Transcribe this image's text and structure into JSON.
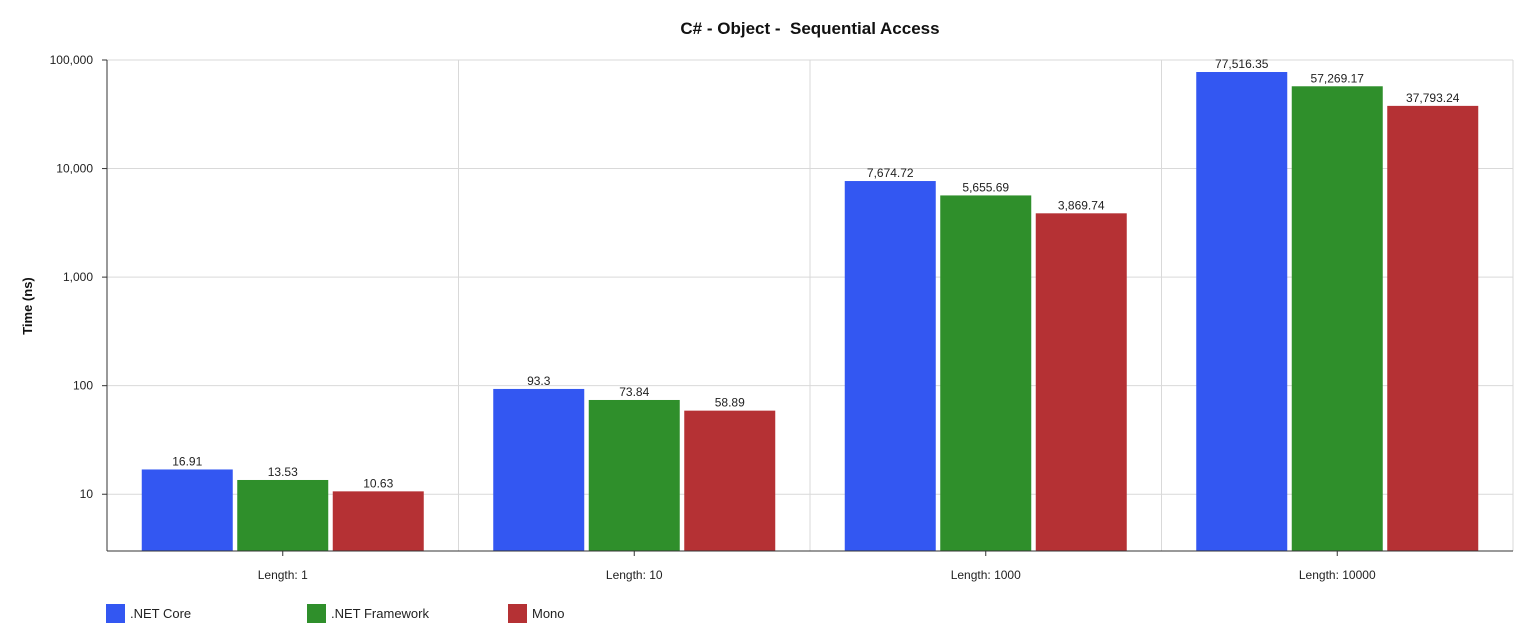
{
  "chart_data": {
    "type": "bar",
    "title": "C# - Object -  Sequential Access",
    "ylabel": "Time (ns)",
    "xlabel": "",
    "y_scale": "log",
    "ylim": [
      3,
      100000
    ],
    "y_ticks": [
      10,
      100,
      1000,
      10000,
      100000
    ],
    "y_tick_labels": [
      "10",
      "100",
      "1,000",
      "10,000",
      "100,000"
    ],
    "grid": true,
    "legend_position": "bottom-left",
    "categories": [
      "Length: 1",
      "Length: 10",
      "Length: 1000",
      "Length: 10000"
    ],
    "series": [
      {
        "name": ".NET Core",
        "color": "#3357f2",
        "values": [
          16.91,
          93.3,
          7674.72,
          77516.35
        ],
        "labels": [
          "16.91",
          "93.3",
          "7,674.72",
          "77,516.35"
        ]
      },
      {
        "name": ".NET Framework",
        "color": "#2f8f2b",
        "values": [
          13.53,
          73.84,
          5655.69,
          57269.17
        ],
        "labels": [
          "13.53",
          "73.84",
          "5,655.69",
          "57,269.17"
        ]
      },
      {
        "name": "Mono",
        "color": "#b53134",
        "values": [
          10.63,
          58.89,
          3869.74,
          37793.24
        ],
        "labels": [
          "10.63",
          "58.89",
          "3,869.74",
          "37,793.24"
        ]
      }
    ]
  }
}
